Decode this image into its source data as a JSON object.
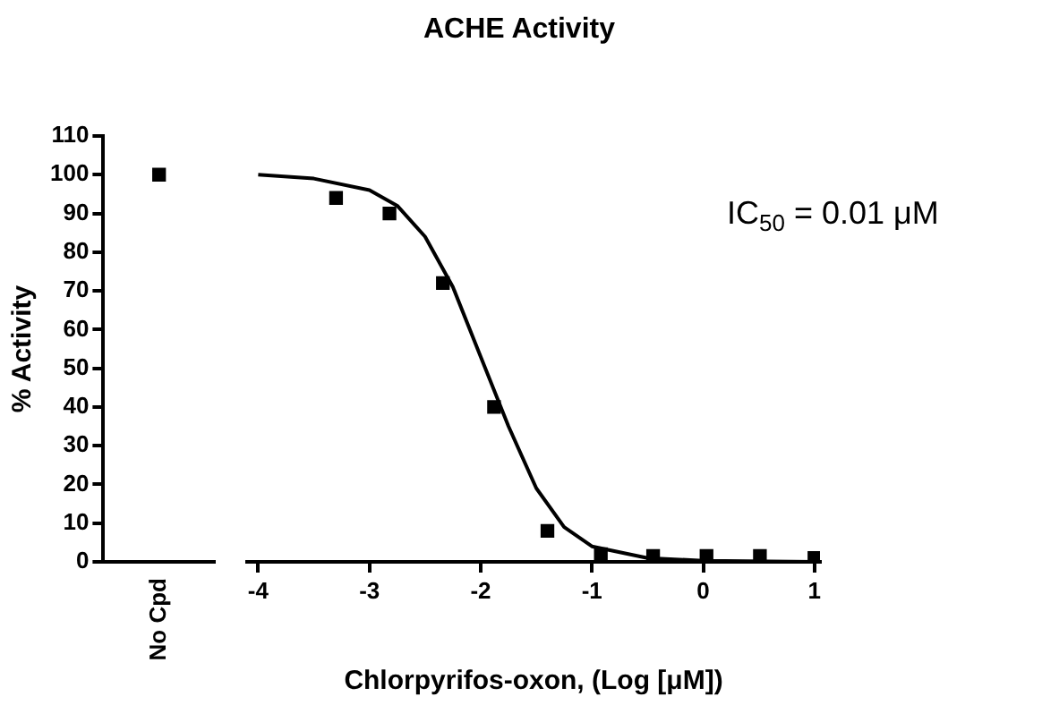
{
  "chart_data": [
    {
      "type": "scatter",
      "ylabel": "% Activity",
      "categories": [
        "No Cpd"
      ],
      "values": [
        100
      ],
      "color": "#000000",
      "marker": "square",
      "ylim": [
        0,
        110
      ],
      "yticks": [
        0,
        10,
        20,
        30,
        40,
        50,
        60,
        70,
        80,
        90,
        100,
        110
      ],
      "grid": false
    },
    {
      "type": "scatter",
      "title": "ACHE Activity",
      "xlabel": "Chlorpyrifos-oxon, (Log [μM])",
      "xlim": [
        -4.1,
        1.05
      ],
      "xticks": [
        -4,
        -3,
        -2,
        -1,
        0,
        1
      ],
      "ylim": [
        0,
        110
      ],
      "tick_labels": "x",
      "grid": false,
      "marker": "square",
      "annotations": [
        "IC$_{50}$ = 0.01 μM"
      ],
      "series": [
        {
          "color": "#000000",
          "x": [
            -3.3,
            -2.82,
            -2.34,
            -1.88,
            -1.4,
            -0.92,
            -0.45,
            0.03,
            0.51,
            1.0
          ],
          "values": [
            94,
            90,
            72,
            40,
            8,
            2,
            1.5,
            1.5,
            1.5,
            1
          ]
        },
        {
          "type": "line",
          "color": "#000000",
          "marker": "none",
          "x": [
            -4,
            -3.5,
            -3,
            -2.75,
            -2.5,
            -2.25,
            -2,
            -1.75,
            -1.5,
            -1.25,
            -1,
            -0.5,
            0,
            1
          ],
          "values": [
            100,
            99,
            96,
            92,
            84,
            71,
            53,
            35,
            19,
            9,
            4,
            1,
            0.3,
            0
          ]
        }
      ]
    }
  ]
}
